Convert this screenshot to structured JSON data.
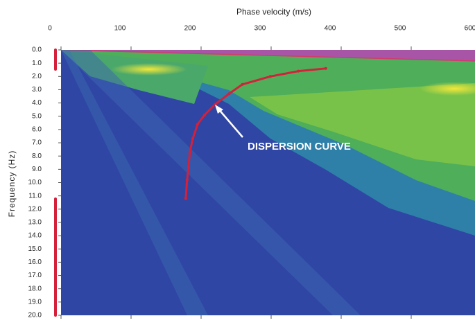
{
  "chart_data": {
    "type": "line",
    "xlabel": "Phase velocity (m/s)",
    "ylabel": "Frequency (Hz)",
    "xlim": [
      0,
      600
    ],
    "xticks": [
      0,
      100,
      200,
      300,
      400,
      500,
      600
    ],
    "ylim": [
      0,
      20
    ],
    "yticks": [
      {
        "value": 0,
        "label": "0.0"
      },
      {
        "value": 1,
        "label": "1.0"
      },
      {
        "value": 2,
        "label": "2.0"
      },
      {
        "value": 3,
        "label": "3.0"
      },
      {
        "value": 4,
        "label": "4.0"
      },
      {
        "value": 5,
        "label": "5.0"
      },
      {
        "value": 6,
        "label": "6.0"
      },
      {
        "value": 7,
        "label": "7.0"
      },
      {
        "value": 8,
        "label": "8.0"
      },
      {
        "value": 9,
        "label": "9.0"
      },
      {
        "value": 10,
        "label": "10.0"
      },
      {
        "value": 11,
        "label": "11.0"
      },
      {
        "value": 12,
        "label": "12.0"
      },
      {
        "value": 13,
        "label": "13.0"
      },
      {
        "value": 14,
        "label": "14.0"
      },
      {
        "value": 15,
        "label": "15.0"
      },
      {
        "value": 16,
        "label": "16.0"
      },
      {
        "value": 17,
        "label": "17.0"
      },
      {
        "value": 18,
        "label": "18.0"
      },
      {
        "value": 19,
        "label": "19.0"
      },
      {
        "value": 20,
        "label": "20.0"
      }
    ],
    "y_inverted": true,
    "x": [
      378,
      339,
      299,
      259,
      240,
      220,
      205,
      195,
      188,
      184,
      182,
      180,
      178
    ],
    "values": [
      1.4,
      1.6,
      2.0,
      2.6,
      3.3,
      4.1,
      4.9,
      5.6,
      6.7,
      7.7,
      8.8,
      9.8,
      11.2
    ],
    "color": "#d4203a",
    "annotation": "DISPERSION CURVE"
  }
}
